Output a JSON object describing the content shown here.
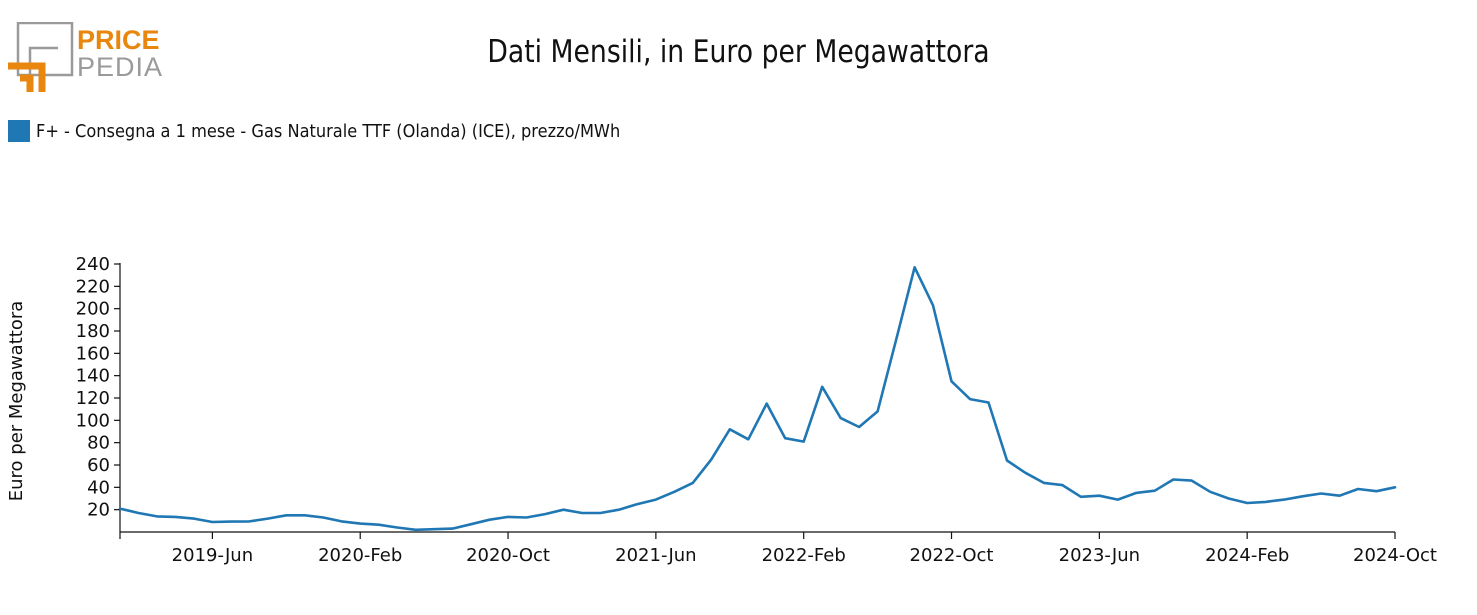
{
  "logo": {
    "line1": "PRICE",
    "line2": "PEDIA",
    "accent_color": "#e8860e",
    "gray_color": "#9a9a9a"
  },
  "legend": {
    "label": "F+ - Consegna a 1 mese - Gas Naturale TTF (Olanda) (ICE), prezzo/MWh",
    "color": "#1f77b4"
  },
  "chart_data": {
    "type": "line",
    "title": "Dati Mensili, in Euro per Megawattora",
    "xlabel": "",
    "ylabel": "Euro per Megawattora",
    "ylim": [
      0,
      240
    ],
    "yticks": [
      20,
      40,
      60,
      80,
      100,
      120,
      140,
      160,
      180,
      200,
      220,
      240
    ],
    "xlim": [
      "2019-01",
      "2024-10"
    ],
    "xticks": [
      "2019-Jun",
      "2020-Feb",
      "2020-Oct",
      "2021-Jun",
      "2022-Feb",
      "2022-Oct",
      "2023-Jun",
      "2024-Feb",
      "2024-Oct"
    ],
    "grid": false,
    "legend_position": "top-left",
    "series": [
      {
        "name": "F+ - Consegna a 1 mese - Gas Naturale TTF (Olanda) (ICE), prezzo/MWh",
        "color": "#1f77b4",
        "x": [
          "2019-01",
          "2019-02",
          "2019-03",
          "2019-04",
          "2019-05",
          "2019-06",
          "2019-07",
          "2019-08",
          "2019-09",
          "2019-10",
          "2019-11",
          "2019-12",
          "2020-01",
          "2020-02",
          "2020-03",
          "2020-04",
          "2020-05",
          "2020-06",
          "2020-07",
          "2020-08",
          "2020-09",
          "2020-10",
          "2020-11",
          "2020-12",
          "2021-01",
          "2021-02",
          "2021-03",
          "2021-04",
          "2021-05",
          "2021-06",
          "2021-07",
          "2021-08",
          "2021-09",
          "2021-10",
          "2021-11",
          "2021-12",
          "2022-01",
          "2022-02",
          "2022-03",
          "2022-04",
          "2022-05",
          "2022-06",
          "2022-07",
          "2022-08",
          "2022-09",
          "2022-10",
          "2022-11",
          "2022-12",
          "2023-01",
          "2023-02",
          "2023-03",
          "2023-04",
          "2023-05",
          "2023-06",
          "2023-07",
          "2023-08",
          "2023-09",
          "2023-10",
          "2023-11",
          "2023-12",
          "2024-01",
          "2024-02",
          "2024-03",
          "2024-04",
          "2024-05",
          "2024-06",
          "2024-07",
          "2024-08",
          "2024-09",
          "2024-10"
        ],
        "y": [
          21,
          17,
          14,
          13.5,
          12,
          9,
          9.3,
          9.5,
          12,
          15,
          15,
          13,
          9.5,
          7.5,
          6.5,
          4,
          2,
          2.5,
          3,
          7,
          11,
          13.5,
          13,
          16,
          20,
          17,
          17,
          20,
          25,
          29,
          36,
          44,
          65,
          92,
          83,
          115,
          84,
          81,
          130,
          102,
          94,
          108,
          172,
          237,
          203,
          135,
          119,
          116,
          64,
          53,
          44,
          42,
          31.5,
          32.5,
          29,
          35,
          37,
          47,
          46,
          36,
          30,
          26,
          27,
          29,
          32,
          34.5,
          32.5,
          38.5,
          36.5,
          40
        ]
      }
    ]
  }
}
